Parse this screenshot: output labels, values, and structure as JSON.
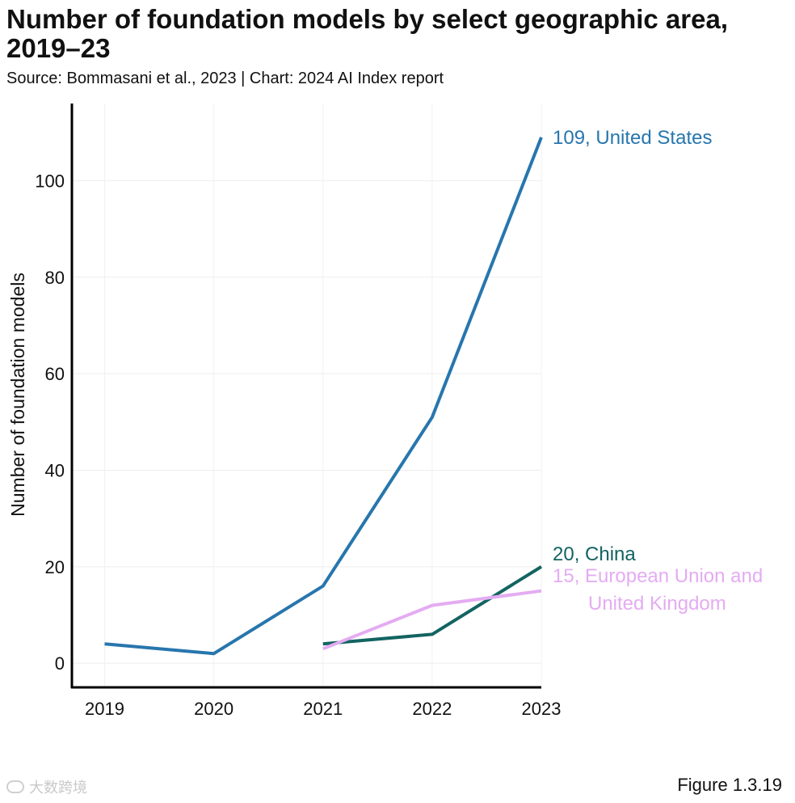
{
  "header": {
    "title": "Number of foundation models by select geographic area, 2019–23",
    "subtitle": "Source: Bommasani et al., 2023 | Chart: 2024 AI Index report"
  },
  "footer": {
    "figure_label": "Figure 1.3.19",
    "watermark": "大数跨境"
  },
  "chart_data": {
    "type": "line",
    "title": "Number of foundation models by select geographic area, 2019–23",
    "xlabel": "",
    "ylabel": "Number of foundation models",
    "x": [
      2019,
      2020,
      2021,
      2022,
      2023
    ],
    "xlim": [
      2018.7,
      2023
    ],
    "ylim": [
      -5,
      116
    ],
    "yticks": [
      0,
      20,
      40,
      60,
      80,
      100
    ],
    "grid": true,
    "legend": "end-of-line labels",
    "series": [
      {
        "name": "United States",
        "color": "#2776ae",
        "x": [
          2019,
          2020,
          2021,
          2022,
          2023
        ],
        "values": [
          4,
          2,
          16,
          51,
          109
        ],
        "end_label": [
          "109, United States"
        ]
      },
      {
        "name": "China",
        "color": "#126461",
        "x": [
          2021,
          2022,
          2023
        ],
        "values": [
          4,
          6,
          20
        ],
        "end_label": [
          "20, China"
        ]
      },
      {
        "name": "European Union and United Kingdom",
        "color": "#e4acf2",
        "x": [
          2021,
          2022,
          2023
        ],
        "values": [
          3,
          12,
          15
        ],
        "end_label": [
          "15, European Union and",
          "United Kingdom"
        ]
      }
    ]
  }
}
